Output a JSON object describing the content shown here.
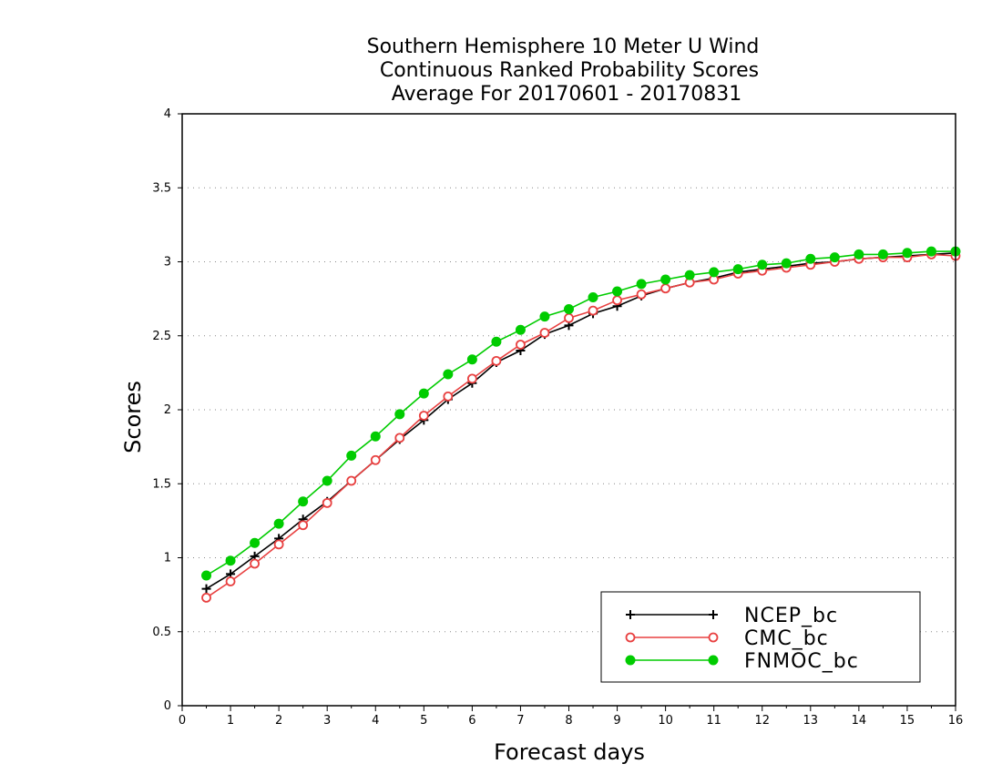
{
  "chart_data": {
    "type": "line",
    "title": [
      "Southern Hemisphere 10 Meter U Wind",
      "Continuous Ranked Probability Scores",
      "Average For 20170601 - 20170831"
    ],
    "xlabel": "Forecast days",
    "ylabel": "Scores",
    "xlim": [
      0,
      16
    ],
    "ylim": [
      0,
      4
    ],
    "xticks": [
      "0",
      "1",
      "2",
      "3",
      "4",
      "5",
      "6",
      "7",
      "8",
      "9",
      "10",
      "11",
      "12",
      "13",
      "14",
      "15",
      "16"
    ],
    "yticks": [
      "0",
      "0.5",
      "1",
      "1.5",
      "2",
      "2.5",
      "3",
      "3.5",
      "4"
    ],
    "grid": "horizontal dotted",
    "legend_position": "bottom-right",
    "x": [
      0.5,
      1,
      1.5,
      2,
      2.5,
      3,
      3.5,
      4,
      4.5,
      5,
      5.5,
      6,
      6.5,
      7,
      7.5,
      8,
      8.5,
      9,
      9.5,
      10,
      10.5,
      11,
      11.5,
      12,
      12.5,
      13,
      13.5,
      14,
      14.5,
      15,
      15.5,
      16
    ],
    "series": [
      {
        "name": "NCEP_bc",
        "color": "#000000",
        "marker": "plus",
        "values": [
          0.79,
          0.89,
          1.01,
          1.13,
          1.26,
          1.38,
          1.52,
          1.66,
          1.8,
          1.93,
          2.07,
          2.18,
          2.32,
          2.4,
          2.51,
          2.57,
          2.65,
          2.7,
          2.77,
          2.82,
          2.86,
          2.89,
          2.93,
          2.95,
          2.97,
          2.99,
          3.0,
          3.02,
          3.03,
          3.04,
          3.05,
          3.06
        ]
      },
      {
        "name": "CMC_bc",
        "color": "#e84040",
        "marker": "open-circle",
        "values": [
          0.73,
          0.84,
          0.96,
          1.09,
          1.22,
          1.37,
          1.52,
          1.66,
          1.81,
          1.96,
          2.09,
          2.21,
          2.33,
          2.44,
          2.52,
          2.62,
          2.67,
          2.74,
          2.78,
          2.82,
          2.86,
          2.88,
          2.92,
          2.94,
          2.96,
          2.98,
          3.0,
          3.02,
          3.03,
          3.03,
          3.05,
          3.04
        ]
      },
      {
        "name": "FNMOC_bc",
        "color": "#00cc00",
        "marker": "filled-circle",
        "values": [
          0.88,
          0.98,
          1.1,
          1.23,
          1.38,
          1.52,
          1.69,
          1.82,
          1.97,
          2.11,
          2.24,
          2.34,
          2.46,
          2.54,
          2.63,
          2.68,
          2.76,
          2.8,
          2.85,
          2.88,
          2.91,
          2.93,
          2.95,
          2.98,
          2.99,
          3.02,
          3.03,
          3.05,
          3.05,
          3.06,
          3.07,
          3.07
        ]
      }
    ]
  }
}
